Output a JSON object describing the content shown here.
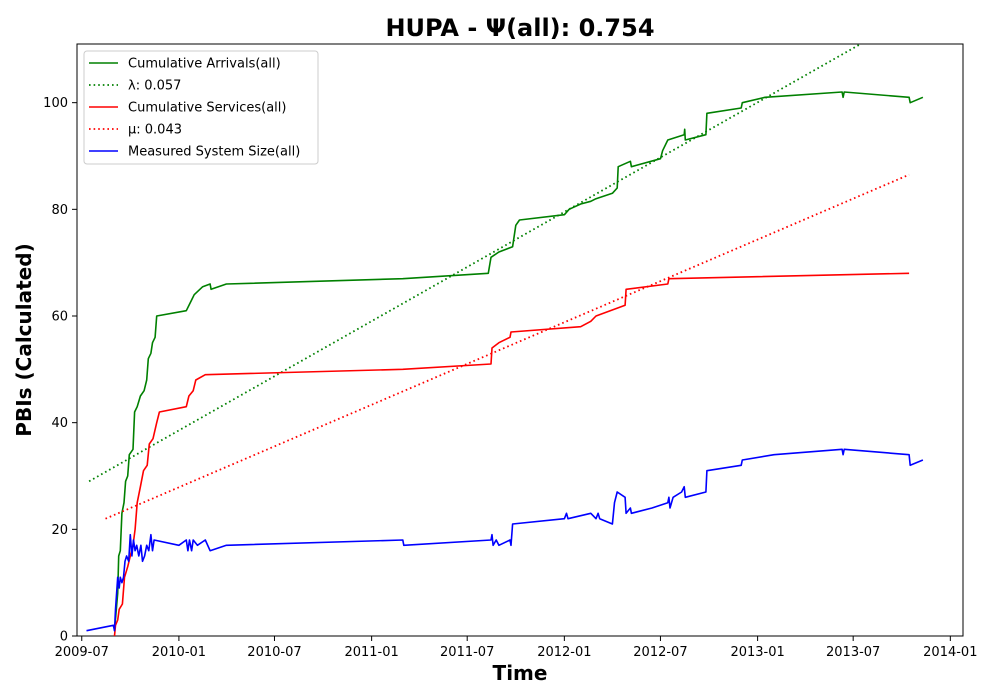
{
  "chart_data": {
    "type": "line",
    "title": "HUPA -  Ψ(all): 0.754",
    "xlabel": "Time",
    "ylabel": "PBIs (Calculated)",
    "x_type": "date",
    "xlim": [
      "2009-06-22",
      "2014-01-25"
    ],
    "ylim": [
      0,
      111
    ],
    "x_ticks": [
      "2009-07-01",
      "2010-01-01",
      "2010-07-01",
      "2011-01-01",
      "2011-07-01",
      "2012-01-01",
      "2012-07-01",
      "2013-01-01",
      "2013-07-01",
      "2014-01-01"
    ],
    "x_tick_labels": [
      "2009-07",
      "2010-01",
      "2010-07",
      "2011-01",
      "2011-07",
      "2012-01",
      "2012-07",
      "2013-01",
      "2013-07",
      "2014-01"
    ],
    "y_ticks": [
      0,
      20,
      40,
      60,
      80,
      100
    ],
    "y_tick_labels": [
      "0",
      "20",
      "40",
      "60",
      "80",
      "100"
    ],
    "grid": false,
    "legend_position": "top-left",
    "series": [
      {
        "name": "Cumulative Arrivals(all)",
        "color": "#008000",
        "style": "solid",
        "points": [
          [
            "2009-09-01",
            1
          ],
          [
            "2009-09-07",
            8
          ],
          [
            "2009-09-09",
            15
          ],
          [
            "2009-09-12",
            16
          ],
          [
            "2009-09-15",
            23
          ],
          [
            "2009-09-19",
            25
          ],
          [
            "2009-09-22",
            29
          ],
          [
            "2009-09-26",
            30
          ],
          [
            "2009-09-29",
            34
          ],
          [
            "2009-10-06",
            35
          ],
          [
            "2009-10-09",
            42
          ],
          [
            "2009-10-14",
            43
          ],
          [
            "2009-10-20",
            45
          ],
          [
            "2009-10-27",
            46
          ],
          [
            "2009-11-01",
            48
          ],
          [
            "2009-11-04",
            52
          ],
          [
            "2009-11-09",
            53
          ],
          [
            "2009-11-12",
            55
          ],
          [
            "2009-11-17",
            56
          ],
          [
            "2009-11-20",
            60
          ],
          [
            "2010-01-15",
            61
          ],
          [
            "2010-01-25",
            63
          ],
          [
            "2010-01-30",
            64
          ],
          [
            "2010-02-15",
            65.5
          ],
          [
            "2010-03-01",
            66
          ],
          [
            "2010-03-03",
            65
          ],
          [
            "2010-04-01",
            66
          ],
          [
            "2011-03-01",
            67
          ],
          [
            "2011-08-10",
            68
          ],
          [
            "2011-08-15",
            71
          ],
          [
            "2011-08-30",
            72
          ],
          [
            "2011-09-25",
            73
          ],
          [
            "2011-10-01",
            77
          ],
          [
            "2011-10-08",
            78
          ],
          [
            "2012-01-01",
            79
          ],
          [
            "2012-01-10",
            80
          ],
          [
            "2012-02-01",
            81
          ],
          [
            "2012-02-20",
            81.5
          ],
          [
            "2012-03-01",
            82
          ],
          [
            "2012-04-01",
            83
          ],
          [
            "2012-04-10",
            84
          ],
          [
            "2012-04-12",
            88
          ],
          [
            "2012-05-05",
            89
          ],
          [
            "2012-05-07",
            88
          ],
          [
            "2012-07-01",
            89.5
          ],
          [
            "2012-07-05",
            91
          ],
          [
            "2012-07-15",
            93
          ],
          [
            "2012-08-15",
            94
          ],
          [
            "2012-08-16",
            95
          ],
          [
            "2012-08-17",
            93
          ],
          [
            "2012-09-25",
            94
          ],
          [
            "2012-09-27",
            98
          ],
          [
            "2012-12-01",
            99
          ],
          [
            "2012-12-03",
            100
          ],
          [
            "2013-01-15",
            101
          ],
          [
            "2013-06-10",
            102
          ],
          [
            "2013-06-12",
            101
          ],
          [
            "2013-06-14",
            102
          ],
          [
            "2013-10-15",
            101
          ],
          [
            "2013-10-17",
            100
          ],
          [
            "2013-11-10",
            101
          ]
        ]
      },
      {
        "name": "λ: 0.057",
        "color": "#008000",
        "style": "dotted",
        "points": [
          [
            "2009-07-15",
            29
          ],
          [
            "2013-07-15",
            111
          ]
        ]
      },
      {
        "name": "Cumulative Services(all)",
        "color": "#ff0000",
        "style": "solid",
        "points": [
          [
            "2009-09-01",
            0
          ],
          [
            "2009-09-03",
            2
          ],
          [
            "2009-09-07",
            3
          ],
          [
            "2009-09-10",
            5
          ],
          [
            "2009-09-16",
            6
          ],
          [
            "2009-09-20",
            11
          ],
          [
            "2009-09-26",
            13
          ],
          [
            "2009-10-01",
            15
          ],
          [
            "2009-10-06",
            17
          ],
          [
            "2009-10-10",
            20
          ],
          [
            "2009-10-14",
            25
          ],
          [
            "2009-10-20",
            28
          ],
          [
            "2009-10-26",
            31
          ],
          [
            "2009-11-02",
            32
          ],
          [
            "2009-11-06",
            36
          ],
          [
            "2009-11-13",
            37
          ],
          [
            "2009-11-20",
            40
          ],
          [
            "2009-11-25",
            42
          ],
          [
            "2010-01-15",
            43
          ],
          [
            "2010-01-20",
            45
          ],
          [
            "2010-01-28",
            46
          ],
          [
            "2010-02-02",
            48
          ],
          [
            "2010-02-20",
            49
          ],
          [
            "2011-03-01",
            50
          ],
          [
            "2011-08-15",
            51
          ],
          [
            "2011-08-17",
            54
          ],
          [
            "2011-08-30",
            55
          ],
          [
            "2011-09-20",
            56
          ],
          [
            "2011-09-22",
            57
          ],
          [
            "2012-02-01",
            58
          ],
          [
            "2012-02-20",
            59
          ],
          [
            "2012-03-01",
            60
          ],
          [
            "2012-04-25",
            62
          ],
          [
            "2012-04-27",
            65
          ],
          [
            "2012-07-15",
            66
          ],
          [
            "2012-07-17",
            67
          ],
          [
            "2013-10-15",
            68
          ]
        ]
      },
      {
        "name": "μ: 0.043",
        "color": "#ff0000",
        "style": "dotted",
        "points": [
          [
            "2009-08-15",
            22
          ],
          [
            "2013-10-15",
            86.5
          ]
        ]
      },
      {
        "name": "Measured System Size(all)",
        "color": "#0000ff",
        "style": "solid",
        "points": [
          [
            "2009-07-10",
            1
          ],
          [
            "2009-08-30",
            2
          ],
          [
            "2009-09-01",
            1
          ],
          [
            "2009-09-03",
            5
          ],
          [
            "2009-09-05",
            8
          ],
          [
            "2009-09-07",
            11
          ],
          [
            "2009-09-10",
            9
          ],
          [
            "2009-09-12",
            11
          ],
          [
            "2009-09-15",
            10
          ],
          [
            "2009-09-18",
            11
          ],
          [
            "2009-09-21",
            14
          ],
          [
            "2009-09-24",
            15
          ],
          [
            "2009-09-28",
            14
          ],
          [
            "2009-10-01",
            19
          ],
          [
            "2009-10-04",
            15
          ],
          [
            "2009-10-07",
            18
          ],
          [
            "2009-10-10",
            16
          ],
          [
            "2009-10-13",
            17
          ],
          [
            "2009-10-17",
            15
          ],
          [
            "2009-10-21",
            17
          ],
          [
            "2009-10-24",
            14
          ],
          [
            "2009-10-28",
            15
          ],
          [
            "2009-11-01",
            17
          ],
          [
            "2009-11-05",
            16
          ],
          [
            "2009-11-09",
            19
          ],
          [
            "2009-11-12",
            16
          ],
          [
            "2009-11-15",
            18
          ],
          [
            "2010-01-01",
            17
          ],
          [
            "2010-01-15",
            18
          ],
          [
            "2010-01-18",
            16
          ],
          [
            "2010-01-21",
            18
          ],
          [
            "2010-01-25",
            16
          ],
          [
            "2010-01-28",
            18
          ],
          [
            "2010-02-05",
            17
          ],
          [
            "2010-02-20",
            18
          ],
          [
            "2010-03-01",
            16
          ],
          [
            "2010-04-01",
            17
          ],
          [
            "2011-03-01",
            18
          ],
          [
            "2011-03-03",
            17
          ],
          [
            "2011-08-15",
            18
          ],
          [
            "2011-08-17",
            19
          ],
          [
            "2011-08-19",
            17
          ],
          [
            "2011-08-25",
            18
          ],
          [
            "2011-08-30",
            17
          ],
          [
            "2011-09-20",
            18
          ],
          [
            "2011-09-22",
            17
          ],
          [
            "2011-09-25",
            21
          ],
          [
            "2012-01-01",
            22
          ],
          [
            "2012-01-05",
            23
          ],
          [
            "2012-01-08",
            22
          ],
          [
            "2012-02-20",
            23
          ],
          [
            "2012-03-01",
            22
          ],
          [
            "2012-03-05",
            23
          ],
          [
            "2012-03-08",
            22
          ],
          [
            "2012-04-01",
            21
          ],
          [
            "2012-04-05",
            25
          ],
          [
            "2012-04-10",
            27
          ],
          [
            "2012-04-25",
            26
          ],
          [
            "2012-04-27",
            23
          ],
          [
            "2012-05-05",
            24
          ],
          [
            "2012-05-07",
            23
          ],
          [
            "2012-06-15",
            24
          ],
          [
            "2012-07-15",
            25
          ],
          [
            "2012-07-17",
            26
          ],
          [
            "2012-07-19",
            24
          ],
          [
            "2012-07-25",
            26
          ],
          [
            "2012-08-10",
            27
          ],
          [
            "2012-08-15",
            28
          ],
          [
            "2012-08-17",
            26
          ],
          [
            "2012-09-25",
            27
          ],
          [
            "2012-09-27",
            31
          ],
          [
            "2012-12-01",
            32
          ],
          [
            "2012-12-03",
            33
          ],
          [
            "2013-02-01",
            34
          ],
          [
            "2013-06-10",
            35
          ],
          [
            "2013-06-12",
            34
          ],
          [
            "2013-06-14",
            35
          ],
          [
            "2013-10-15",
            34
          ],
          [
            "2013-10-17",
            32
          ],
          [
            "2013-11-10",
            33
          ]
        ]
      }
    ],
    "legend": [
      {
        "label": "Cumulative Arrivals(all)",
        "color": "#008000",
        "style": "solid"
      },
      {
        "label": "λ: 0.057",
        "color": "#008000",
        "style": "dotted"
      },
      {
        "label": "Cumulative Services(all)",
        "color": "#ff0000",
        "style": "solid"
      },
      {
        "label": "μ: 0.043",
        "color": "#ff0000",
        "style": "dotted"
      },
      {
        "label": "Measured System Size(all)",
        "color": "#0000ff",
        "style": "solid"
      }
    ]
  }
}
